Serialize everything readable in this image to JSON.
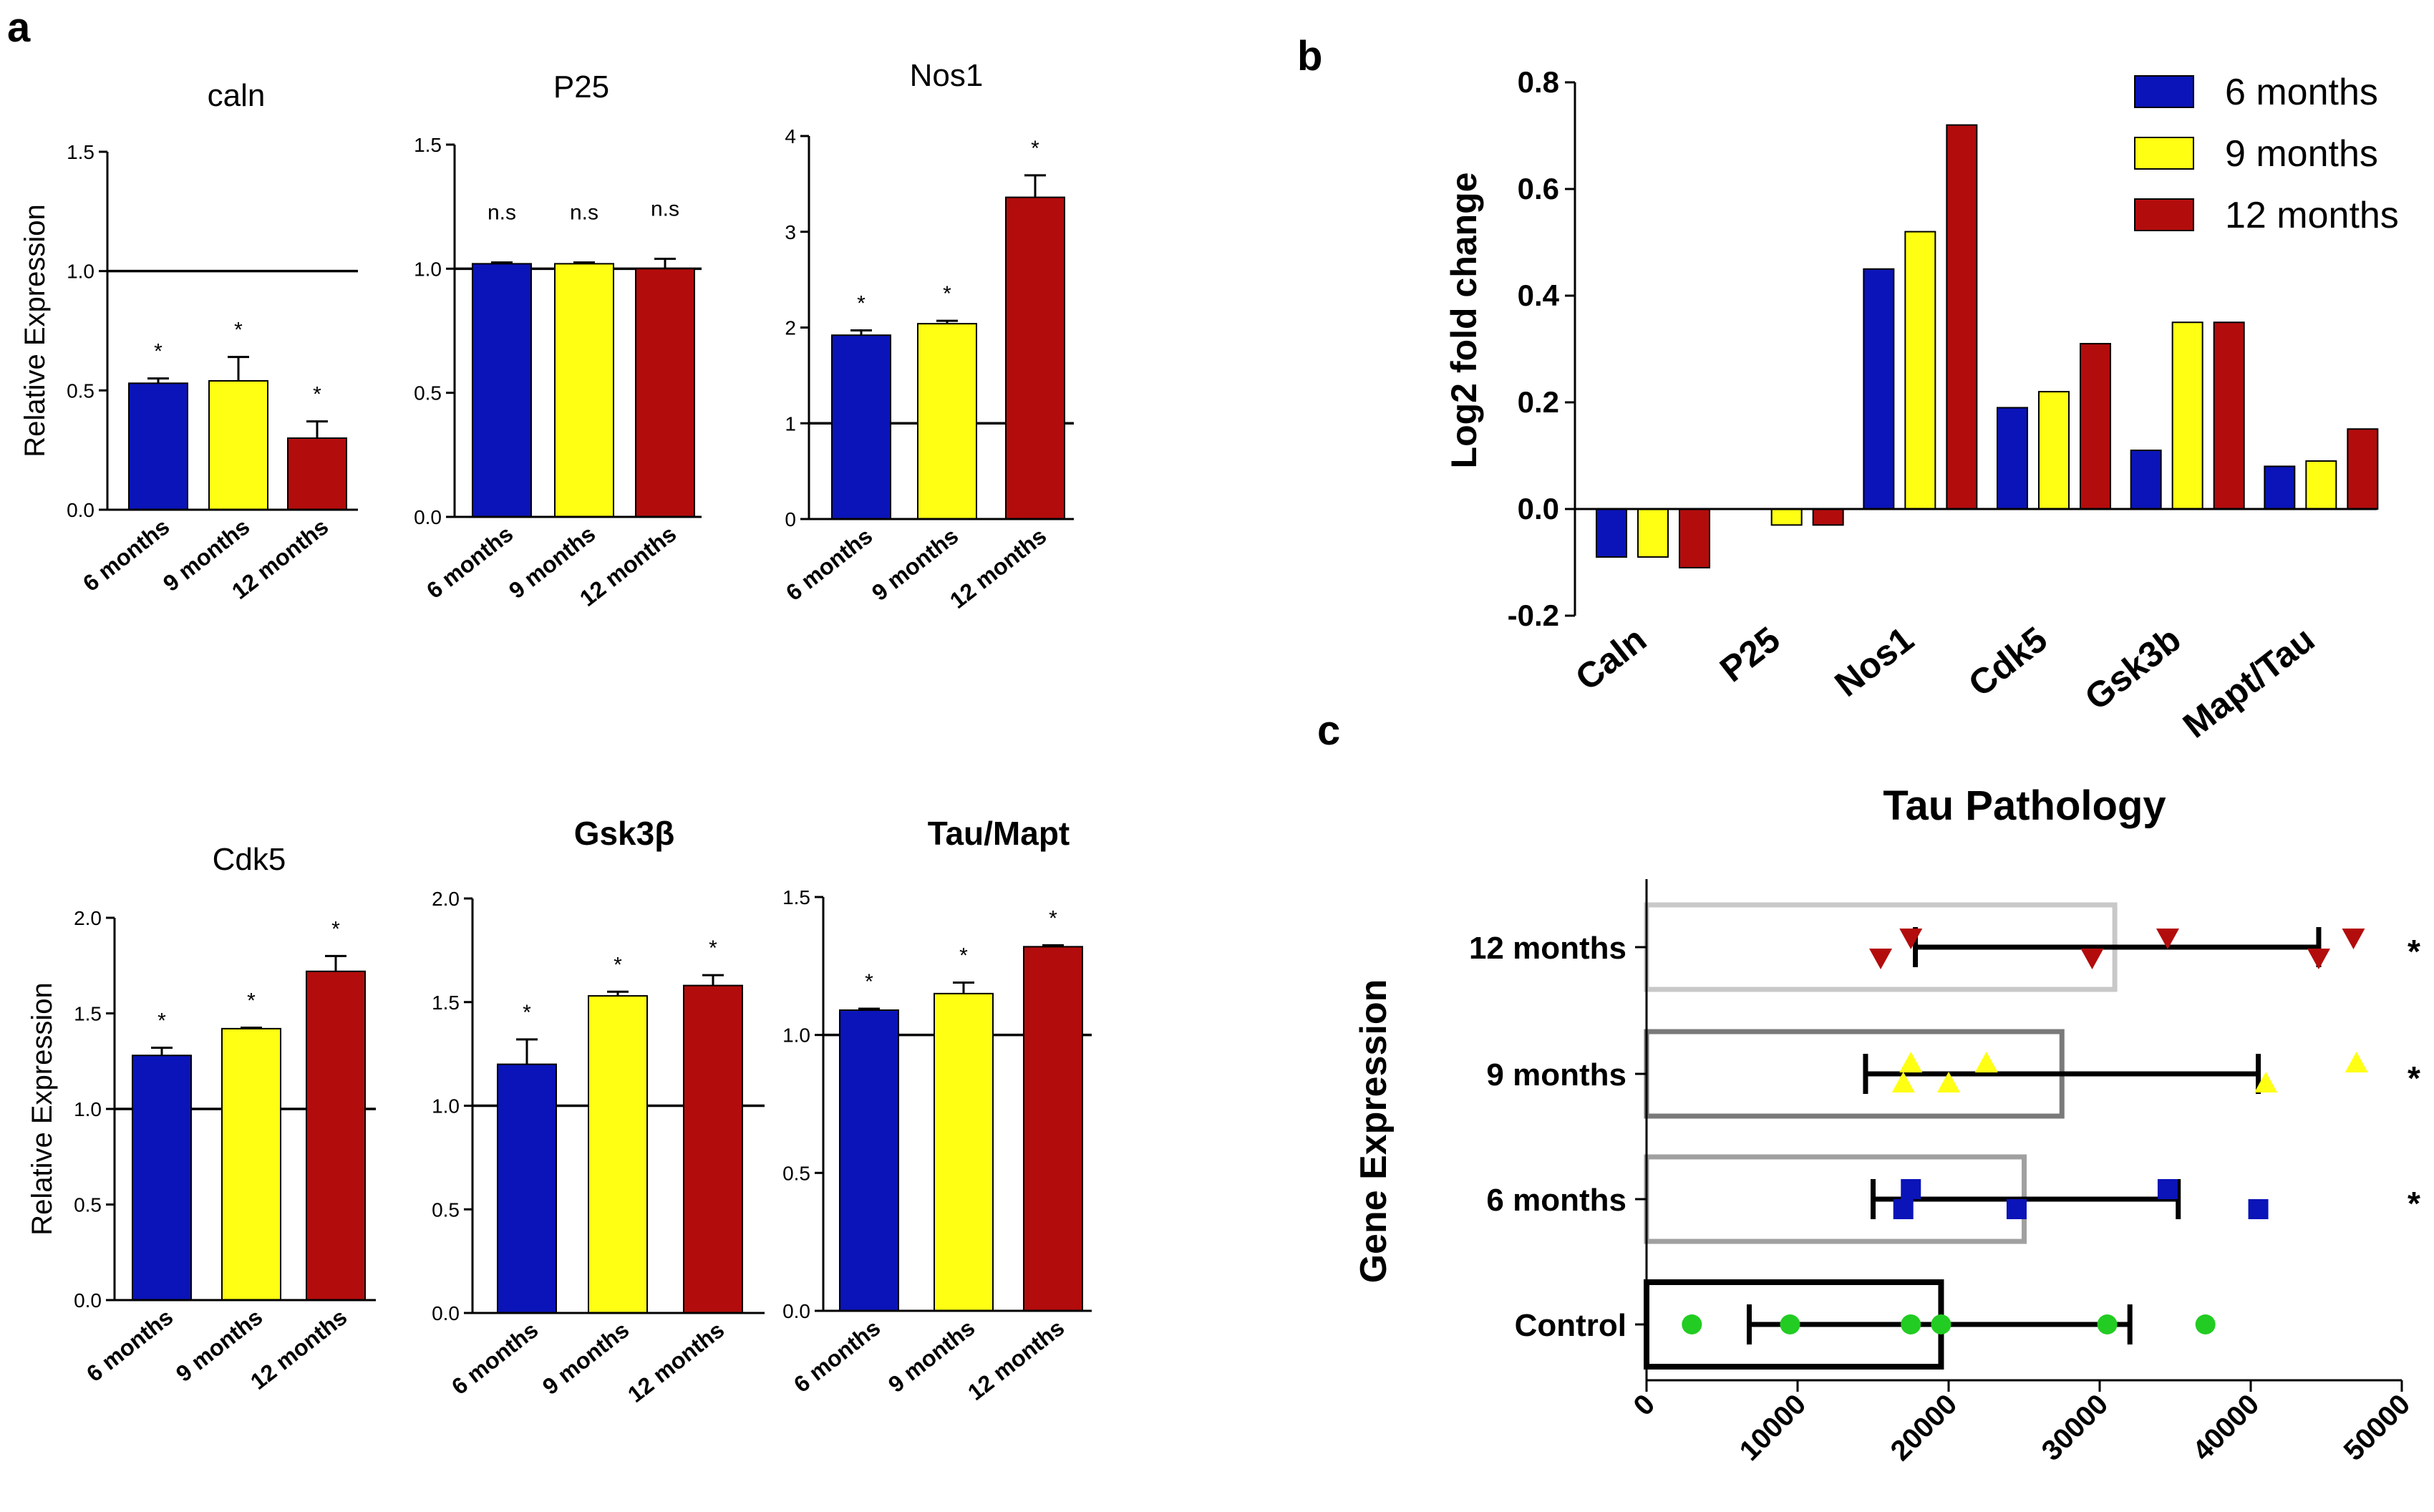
{
  "panels": {
    "a": "a",
    "b": "b",
    "c": "c"
  },
  "colors": {
    "m6": "#0a14b8",
    "m9": "#ffff14",
    "m12": "#b30c0c",
    "control": "#22cc22"
  },
  "chart_data": [
    {
      "id": "caln",
      "type": "bar",
      "title": "caln",
      "ylabel": "Relative Expression",
      "ylim": [
        0,
        1.5
      ],
      "yticks": [
        0.0,
        0.5,
        1.0,
        1.5
      ],
      "ref": 1.0,
      "categories": [
        "6 months",
        "9 months",
        "12 months"
      ],
      "values": [
        0.53,
        0.54,
        0.3
      ],
      "errors": [
        0.02,
        0.1,
        0.07
      ],
      "sig": [
        "*",
        "*",
        "*"
      ]
    },
    {
      "id": "p25",
      "type": "bar",
      "title": "P25",
      "ylabel": "",
      "ylim": [
        0,
        1.5
      ],
      "yticks": [
        0.0,
        0.5,
        1.0,
        1.5
      ],
      "ref": 1.0,
      "categories": [
        "6 months",
        "9 months",
        "12 months"
      ],
      "values": [
        1.02,
        1.02,
        1.0
      ],
      "errors": [
        0.005,
        0.005,
        0.04
      ],
      "sig": [
        "n.s",
        "n.s",
        "n.s"
      ]
    },
    {
      "id": "nos1",
      "type": "bar",
      "title": "Nos1",
      "ylabel": "",
      "ylim": [
        0,
        4
      ],
      "yticks": [
        0,
        1,
        2,
        3,
        4
      ],
      "ref": 1.0,
      "categories": [
        "6 months",
        "9 months",
        "12 months"
      ],
      "values": [
        1.92,
        2.04,
        3.36
      ],
      "errors": [
        0.05,
        0.03,
        0.23
      ],
      "sig": [
        "*",
        "*",
        "*"
      ]
    },
    {
      "id": "cdk5",
      "type": "bar",
      "title": "Cdk5",
      "ylabel": "Relative Expression",
      "ylim": [
        0,
        2.0
      ],
      "yticks": [
        0.0,
        0.5,
        1.0,
        1.5,
        2.0
      ],
      "ref": 1.0,
      "categories": [
        "6 months",
        "9 months",
        "12 months"
      ],
      "values": [
        1.28,
        1.42,
        1.72
      ],
      "errors": [
        0.04,
        0.005,
        0.08
      ],
      "sig": [
        "*",
        "*",
        "*"
      ]
    },
    {
      "id": "gsk3b",
      "type": "bar",
      "title": "Gsk3β",
      "ylabel": "",
      "ylim": [
        0,
        2.0
      ],
      "yticks": [
        0.0,
        0.5,
        1.0,
        1.5,
        2.0
      ],
      "ref": 1.0,
      "categories": [
        "6 months",
        "9 months",
        "12 months"
      ],
      "values": [
        1.2,
        1.53,
        1.58
      ],
      "errors": [
        0.12,
        0.02,
        0.05
      ],
      "sig": [
        "*",
        "*",
        "*"
      ]
    },
    {
      "id": "tau",
      "type": "bar",
      "title": "Tau/Mapt",
      "ylabel": "",
      "ylim": [
        0,
        1.5
      ],
      "yticks": [
        0.0,
        0.5,
        1.0,
        1.5
      ],
      "ref": 1.0,
      "categories": [
        "6 months",
        "9 months",
        "12 months"
      ],
      "values": [
        1.09,
        1.15,
        1.32
      ],
      "errors": [
        0.005,
        0.04,
        0.005
      ],
      "sig": [
        "*",
        "*",
        "*"
      ]
    },
    {
      "id": "log2",
      "type": "bar",
      "title": "",
      "ylabel": "Log2 fold change",
      "ylim": [
        -0.2,
        0.8
      ],
      "yticks": [
        -0.2,
        0.0,
        0.2,
        0.4,
        0.6,
        0.8
      ],
      "categories": [
        "Caln",
        "P25",
        "Nos1",
        "Cdk5",
        "Gsk3b",
        "Mapt/Tau"
      ],
      "series": [
        {
          "name": "6 months",
          "values": [
            -0.09,
            0.0,
            0.45,
            0.19,
            0.11,
            0.08
          ]
        },
        {
          "name": "9 months",
          "values": [
            -0.09,
            -0.03,
            0.52,
            0.22,
            0.35,
            0.09
          ]
        },
        {
          "name": "12 months",
          "values": [
            -0.11,
            -0.03,
            0.72,
            0.31,
            0.35,
            0.15
          ]
        }
      ],
      "legend": "top-right"
    },
    {
      "id": "tau_pathology",
      "type": "scatter",
      "title": "Tau Pathology",
      "ylabel": "Gene Expression",
      "xlim": [
        0,
        50000
      ],
      "xticks": [
        0,
        10000,
        20000,
        30000,
        40000,
        50000
      ],
      "categories": [
        "Control",
        "6 months",
        "9 months",
        "12 months"
      ],
      "means": [
        19500,
        25000,
        27500,
        31000
      ],
      "errorbar": [
        [
          6800,
          32000
        ],
        [
          15000,
          35200
        ],
        [
          14500,
          40500
        ],
        [
          17800,
          44500
        ]
      ],
      "points": [
        [
          3000,
          9500,
          17500,
          19500,
          30500,
          37000
        ],
        [
          17000,
          17500,
          24500,
          34500,
          40500
        ],
        [
          17000,
          17500,
          20000,
          22500,
          41000,
          47000
        ],
        [
          15500,
          17500,
          29500,
          34500,
          44500,
          46800
        ]
      ],
      "sig": [
        "",
        "*",
        "*",
        "*"
      ]
    }
  ]
}
